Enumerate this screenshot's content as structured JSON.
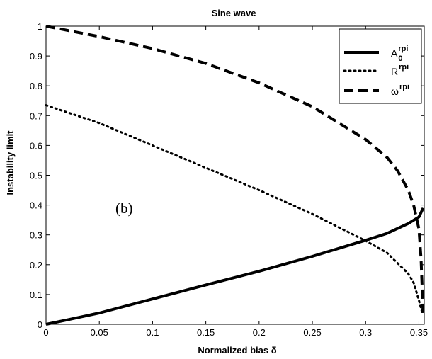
{
  "chart_data": {
    "type": "line",
    "title": "Sine wave",
    "xlabel": "Normalized bias δ",
    "ylabel": "Instability limit",
    "xlim": [
      0,
      0.355
    ],
    "ylim": [
      0,
      1
    ],
    "x_ticks": [
      "0",
      "0.05",
      "0.1",
      "0.15",
      "0.2",
      "0.25",
      "0.3",
      "0.35"
    ],
    "y_ticks": [
      "0",
      "0.1",
      "0.2",
      "0.3",
      "0.4",
      "0.5",
      "0.6",
      "0.7",
      "0.8",
      "0.9",
      "1"
    ],
    "grid": false,
    "legend_position": "top-right",
    "annotation": "(b)",
    "series": [
      {
        "name": "A0rpi",
        "legend_base": "A",
        "legend_sub": "0",
        "legend_sup": "rpi",
        "style": "solid",
        "color": "#000000",
        "x": [
          0,
          0.02,
          0.05,
          0.1,
          0.15,
          0.2,
          0.25,
          0.3,
          0.32,
          0.34,
          0.35,
          0.352,
          0.354
        ],
        "y": [
          0,
          0.015,
          0.038,
          0.085,
          0.132,
          0.178,
          0.228,
          0.282,
          0.305,
          0.338,
          0.36,
          0.375,
          0.39
        ]
      },
      {
        "name": "Rrpi",
        "legend_base": "R",
        "legend_sub": "",
        "legend_sup": "rpi",
        "style": "dotted",
        "color": "#000000",
        "x": [
          0,
          0.05,
          0.1,
          0.15,
          0.2,
          0.25,
          0.3,
          0.32,
          0.34,
          0.345,
          0.35,
          0.353
        ],
        "y": [
          0.735,
          0.675,
          0.6,
          0.525,
          0.45,
          0.37,
          0.28,
          0.24,
          0.17,
          0.14,
          0.08,
          0.04
        ]
      },
      {
        "name": "ωrpi",
        "legend_base": "ω",
        "legend_sub": "",
        "legend_sup": "rpi",
        "style": "dashed",
        "color": "#000000",
        "x": [
          0,
          0.05,
          0.1,
          0.15,
          0.2,
          0.25,
          0.3,
          0.32,
          0.33,
          0.34,
          0.345,
          0.35,
          0.352,
          0.354
        ],
        "y": [
          1,
          0.965,
          0.925,
          0.875,
          0.81,
          0.73,
          0.62,
          0.56,
          0.515,
          0.45,
          0.4,
          0.32,
          0.22,
          0.03
        ]
      }
    ]
  }
}
